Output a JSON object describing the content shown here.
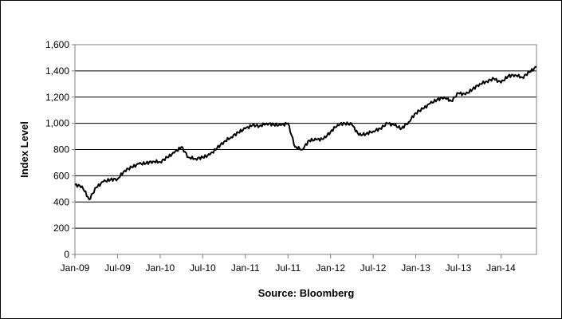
{
  "chart_data": {
    "type": "line",
    "title": "",
    "xlabel": "Source: Bloomberg",
    "ylabel": "Index Level",
    "x_ticks": [
      "Jan-09",
      "Jul-09",
      "Jan-10",
      "Jul-10",
      "Jan-11",
      "Jul-11",
      "Jan-12",
      "Jul-12",
      "Jan-13",
      "Jul-13",
      "Jan-14"
    ],
    "y_ticks": [
      "0",
      "200",
      "400",
      "600",
      "800",
      "1,000",
      "1,200",
      "1,400",
      "1,600"
    ],
    "ylim": [
      0,
      1600
    ],
    "xlim": [
      "2009-01",
      "2014-06"
    ],
    "grid": true,
    "legend": "none",
    "line_color": "#000000",
    "series": [
      {
        "x": [
          "2009-01",
          "2009-02",
          "2009-03",
          "2009-04",
          "2009-05",
          "2009-06",
          "2009-07",
          "2009-08",
          "2009-09",
          "2009-10",
          "2009-11",
          "2009-12",
          "2010-01",
          "2010-02",
          "2010-03",
          "2010-04",
          "2010-05",
          "2010-06",
          "2010-07",
          "2010-08",
          "2010-09",
          "2010-10",
          "2010-11",
          "2010-12",
          "2011-01",
          "2011-02",
          "2011-03",
          "2011-04",
          "2011-05",
          "2011-06",
          "2011-07",
          "2011-08",
          "2011-09",
          "2011-10",
          "2011-11",
          "2011-12",
          "2012-01",
          "2012-02",
          "2012-03",
          "2012-04",
          "2012-05",
          "2012-06",
          "2012-07",
          "2012-08",
          "2012-09",
          "2012-10",
          "2012-11",
          "2012-12",
          "2013-01",
          "2013-02",
          "2013-03",
          "2013-04",
          "2013-05",
          "2013-06",
          "2013-07",
          "2013-08",
          "2013-09",
          "2013-10",
          "2013-11",
          "2013-12",
          "2014-01",
          "2014-02",
          "2014-03",
          "2014-04",
          "2014-05",
          "2014-06"
        ],
        "values": [
          530,
          520,
          420,
          510,
          555,
          570,
          575,
          640,
          665,
          690,
          695,
          710,
          705,
          740,
          775,
          820,
          740,
          730,
          740,
          760,
          810,
          860,
          895,
          930,
          960,
          985,
          980,
          1000,
          990,
          985,
          1000,
          820,
          800,
          870,
          875,
          880,
          935,
          990,
          1000,
          990,
          910,
          920,
          940,
          960,
          1000,
          985,
          960,
          1010,
          1080,
          1110,
          1150,
          1180,
          1200,
          1170,
          1230,
          1220,
          1260,
          1300,
          1320,
          1340,
          1310,
          1360,
          1370,
          1350,
          1390,
          1430
        ]
      }
    ]
  }
}
